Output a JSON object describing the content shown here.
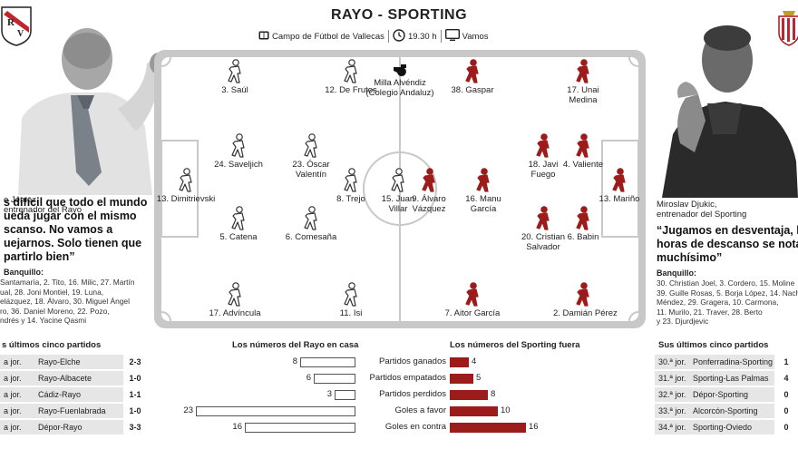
{
  "header": {
    "title": "RAYO - SPORTING",
    "stadium": "Campo de Fútbol de Vallecas",
    "time": "19.30 h",
    "tv": "Vamos"
  },
  "colors": {
    "rayo": "#ffffff",
    "sporting": "#9c1c1c",
    "pitch": "#c8c8c8"
  },
  "home_coach": {
    "name": "o Jémez,",
    "role": "entrenador del Rayo",
    "quote": [
      "s difícil que todo el mundo",
      "ueda jugar con el mismo",
      "scanso. No vamos a",
      "uejarnos. Solo tienen que",
      "partirlo bien”"
    ],
    "bench_title": "Banquillo:",
    "bench": [
      "Santamaría, 2. Tito, 16. Milic, 27. Martín",
      "ual, 28. Joni Montiel, 19. Luna,",
      "elázquez, 18. Álvaro, 30. Miguel Ángel",
      "ro, 36. Daniel Moreno, 22. Pozo,",
      "ndrés y 14. Yacine Qasmi"
    ]
  },
  "away_coach": {
    "name": "Miroslav Djukic,",
    "role": "entrenador del Sporting",
    "quote": [
      "“Jugamos en desventaja, las",
      "horas de descanso se notan",
      "muchísimo”"
    ],
    "bench_title": "Banquillo:",
    "bench": [
      "30. Christian Joel, 3. Cordero, 15. Moline",
      "39. Guille Rosas, 5. Borja López, 14. Nach",
      "Méndez, 29. Gragera, 10. Carmona,",
      "11. Murilo, 21. Traver, 28. Berto",
      "y 23. Djurdjevic"
    ]
  },
  "referee": {
    "name": "Milla Alvéndiz",
    "detail": "(Colegio Andaluz)"
  },
  "rayo_players": [
    {
      "label": "3. Saúl"
    },
    {
      "label": "12. De Frutos"
    },
    {
      "label": "24. Saveljich"
    },
    {
      "label": "23. Óscar",
      "label2": "Valentín"
    },
    {
      "label": "13. Dimitrievski"
    },
    {
      "label": "8. Trejo"
    },
    {
      "label": "15. Juan",
      "label2": "Villar"
    },
    {
      "label": "5. Catena"
    },
    {
      "label": "6. Comesaña"
    },
    {
      "label": "17. Advíncula"
    },
    {
      "label": "11. Isi"
    }
  ],
  "sporting_players": [
    {
      "label": "38. Gaspar"
    },
    {
      "label": "17. Unai",
      "label2": "Medina"
    },
    {
      "label": "18. Javi",
      "label2": "Fuego"
    },
    {
      "label": "4. Valiente"
    },
    {
      "label": "9. Álvaro",
      "label2": "Vázquez"
    },
    {
      "label": "16. Manu",
      "label2": "García"
    },
    {
      "label": "13. Mariño"
    },
    {
      "label": "20. Cristian",
      "label2": "Salvador"
    },
    {
      "label": "6. Babin"
    },
    {
      "label": "7. Aitor García"
    },
    {
      "label": "2. Damián Pérez"
    }
  ],
  "rayo_last5": {
    "title": "s últimos cinco partidos",
    "rows": [
      {
        "jor": "a jor.",
        "teams": "Rayo-Elche",
        "score": "2-3"
      },
      {
        "jor": "a jor.",
        "teams": "Rayo-Albacete",
        "score": "1-0"
      },
      {
        "jor": "a jor.",
        "teams": "Cádiz-Rayo",
        "score": "1-1"
      },
      {
        "jor": "a jor.",
        "teams": "Rayo-Fuenlabrada",
        "score": "1-0"
      },
      {
        "jor": "a jor.",
        "teams": "Dépor-Rayo",
        "score": "3-3"
      }
    ]
  },
  "sporting_last5": {
    "title": "Sus últimos cinco partidos",
    "rows": [
      {
        "jor": "30.ª jor.",
        "teams": "Ponferradina-Sporting",
        "score": "1"
      },
      {
        "jor": "31.ª jor.",
        "teams": "Sporting-Las Palmas",
        "score": "4"
      },
      {
        "jor": "32.ª jor.",
        "teams": "Dépor-Sporting",
        "score": "0"
      },
      {
        "jor": "33.ª jor.",
        "teams": "Alcorcón-Sporting",
        "score": "0"
      },
      {
        "jor": "34.ª jor.",
        "teams": "Sporting-Oviedo",
        "score": "0"
      }
    ]
  },
  "stats": {
    "home_title": "Los números del Rayo en casa",
    "away_title": "Los números del Sporting fuera",
    "rows": [
      {
        "label": "Partidos ganados",
        "home": 8,
        "away": 4
      },
      {
        "label": "Partidos empatados",
        "home": 6,
        "away": 5
      },
      {
        "label": "Partidos perdidos",
        "home": 3,
        "away": 8
      },
      {
        "label": "Goles a favor",
        "home": 23,
        "away": 10
      },
      {
        "label": "Goles en contra",
        "home": 16,
        "away": 16
      }
    ],
    "max": 23
  }
}
